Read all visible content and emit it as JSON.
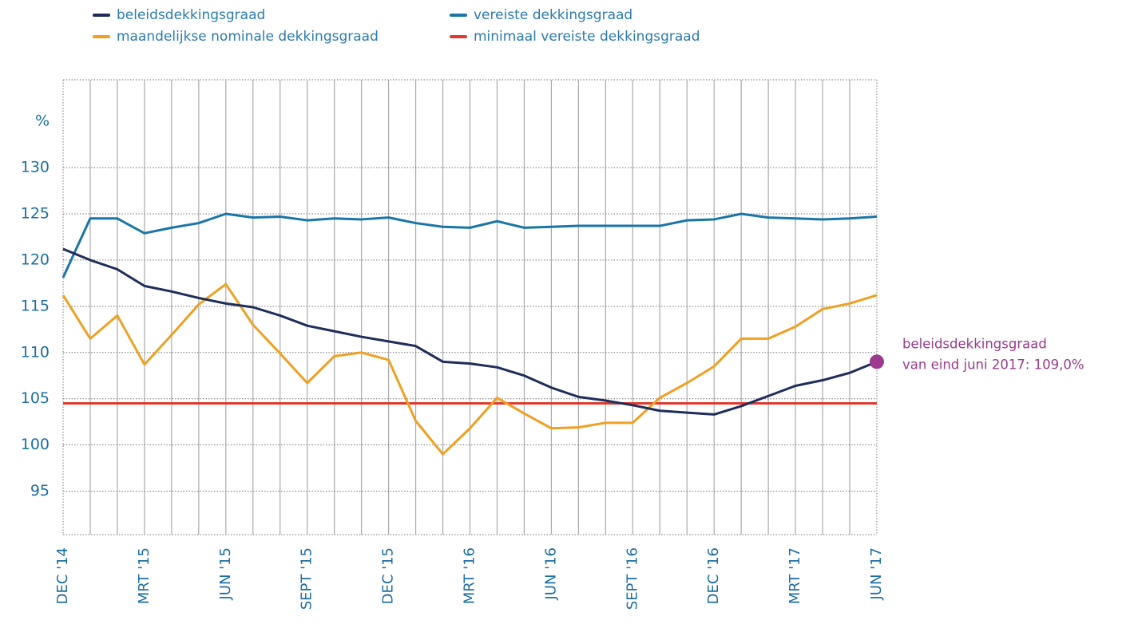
{
  "chart_data": {
    "type": "line",
    "y_label": "%",
    "categories": [
      "DEC '14",
      null,
      null,
      "MRT '15",
      null,
      null,
      "JUN '15",
      null,
      null,
      "SEPT '15",
      null,
      null,
      "DEC '15",
      null,
      null,
      "MRT '16",
      null,
      null,
      "JUN '16",
      null,
      null,
      "SEPT '16",
      null,
      null,
      "DEC '16",
      null,
      null,
      "MRT '17",
      null,
      null,
      "JUN '17"
    ],
    "series": [
      {
        "name": "beleidsdekkingsgraad",
        "color": "#1f2d5a",
        "values": [
          121.2,
          120.0,
          119.0,
          117.2,
          116.6,
          115.9,
          115.3,
          114.9,
          114.0,
          112.9,
          112.3,
          111.7,
          111.2,
          110.7,
          109.0,
          108.8,
          108.4,
          107.5,
          106.2,
          105.2,
          104.8,
          104.3,
          103.7,
          103.5,
          103.3,
          104.2,
          105.3,
          106.4,
          107.0,
          107.8,
          109.0
        ]
      },
      {
        "name": "vereiste dekkingsgraad",
        "color": "#1a75a8",
        "values": [
          118.1,
          124.5,
          124.5,
          122.9,
          123.5,
          124.0,
          125.0,
          124.6,
          124.7,
          124.3,
          124.5,
          124.4,
          124.6,
          124.0,
          123.6,
          123.5,
          124.2,
          123.5,
          123.6,
          123.7,
          123.7,
          123.7,
          123.7,
          124.3,
          124.4,
          125.0,
          124.6,
          124.5,
          124.4,
          124.5,
          124.7
        ]
      },
      {
        "name": "maandelijkse nominale dekkingsgraad",
        "color": "#f0a022",
        "values": [
          116.2,
          111.5,
          114.0,
          108.7,
          111.9,
          115.2,
          117.4,
          113.0,
          109.9,
          106.7,
          109.6,
          110.0,
          109.2,
          102.6,
          99.0,
          101.8,
          105.1,
          103.4,
          101.8,
          101.9,
          102.4,
          102.4,
          105.1,
          106.7,
          108.5,
          111.5,
          111.5,
          112.8,
          114.7,
          115.3,
          116.2
        ]
      },
      {
        "name": "minimaal vereiste dekkingsgraad",
        "color": "#e03a2f",
        "values": [
          104.5,
          104.5,
          104.5,
          104.5,
          104.5,
          104.5,
          104.5,
          104.5,
          104.5,
          104.5,
          104.5,
          104.5,
          104.5,
          104.5,
          104.5,
          104.5,
          104.5,
          104.5,
          104.5,
          104.5,
          104.5,
          104.5,
          104.5,
          104.5,
          104.5,
          104.5,
          104.5,
          104.5,
          104.5,
          104.5,
          104.5
        ]
      }
    ],
    "ylim": [
      90.3,
      139.5
    ],
    "yticks": [
      95,
      100,
      105,
      110,
      115,
      120,
      125,
      130
    ],
    "grid": true,
    "annotation": {
      "lines": [
        "beleidsdekkingsgraad",
        "van eind juni 2017: 109,0%"
      ],
      "color": "#9b3a8f"
    }
  }
}
